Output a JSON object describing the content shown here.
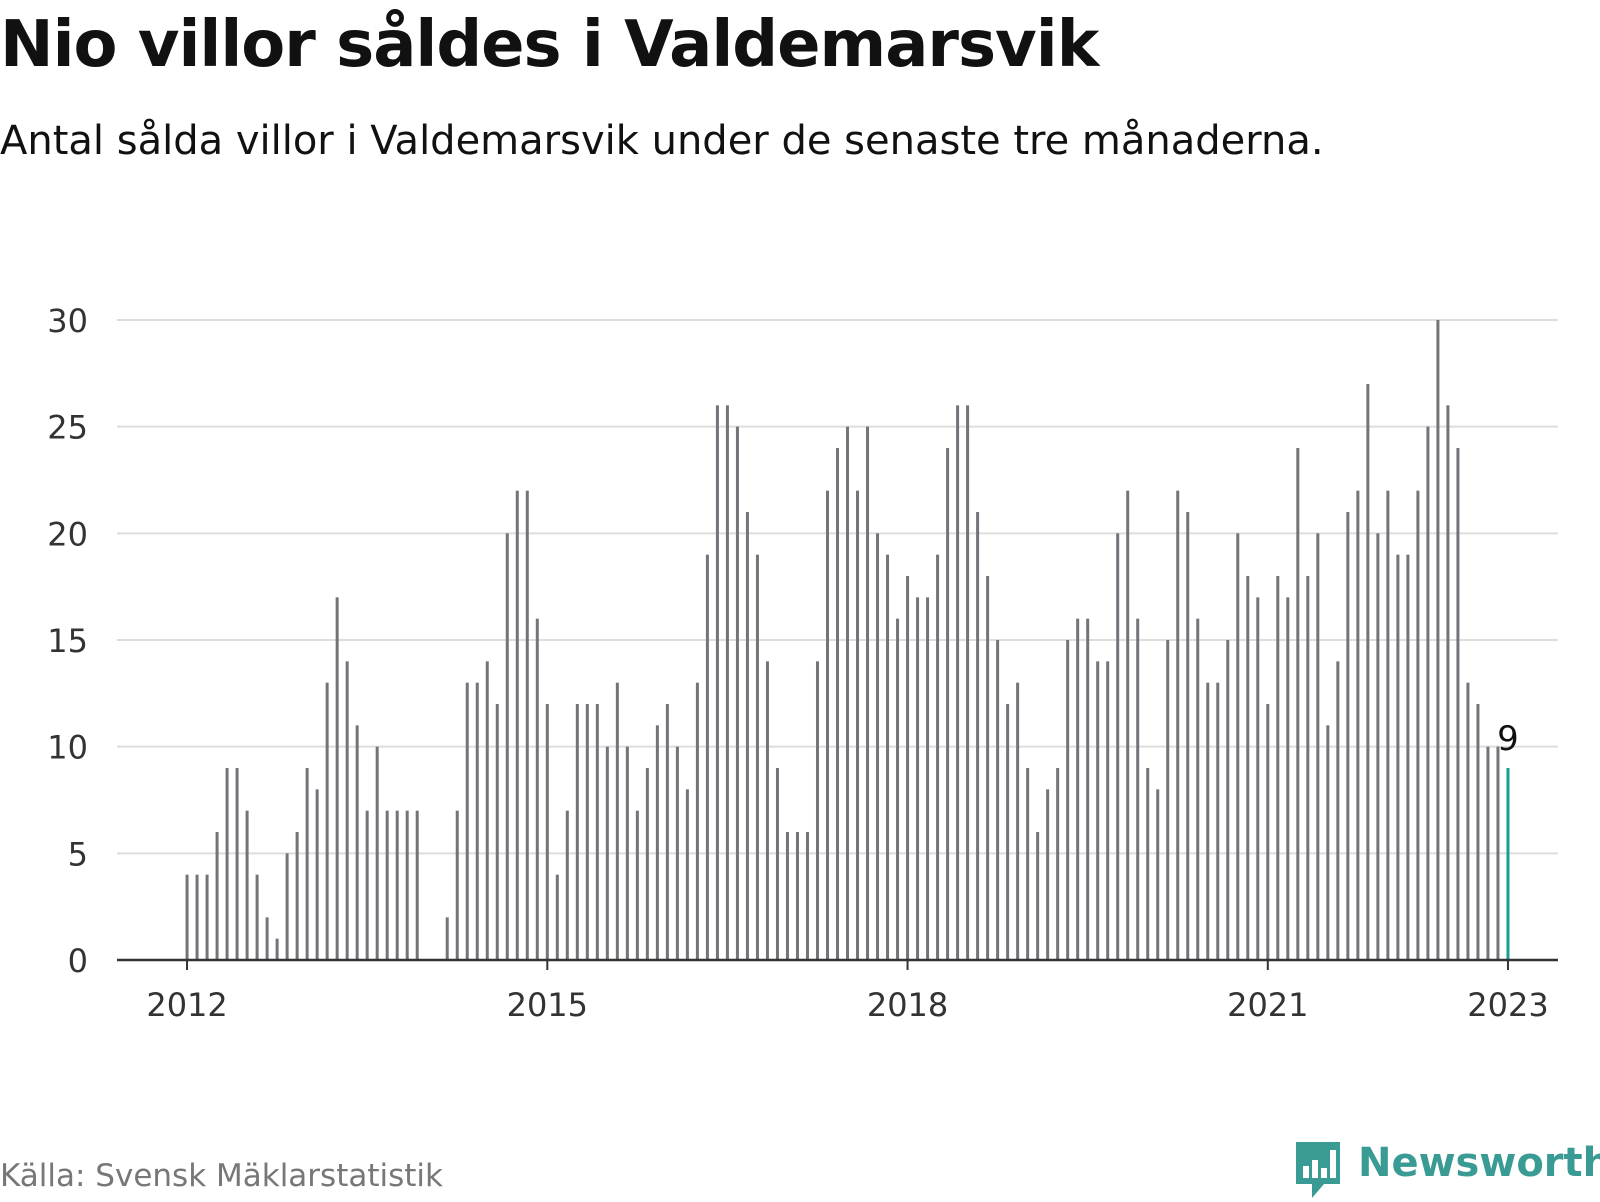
{
  "title": "Nio villor såldes i Valdemarsvik",
  "subtitle": "Antal sålda villor i Valdemarsvik under de senaste tre månaderna.",
  "source": "Källa: Svensk Mäklarstatistik",
  "brand": {
    "name": "Newsworthy",
    "icon": "newsworthy-logo-icon",
    "color": "#3a9b94"
  },
  "colors": {
    "bar": "#74737a",
    "highlight": "#1a9e92",
    "grid": "#dddddd",
    "axis": "#333333",
    "text": "#333333"
  },
  "chart_data": {
    "type": "bar",
    "title": "Nio villor såldes i Valdemarsvik",
    "subtitle": "Antal sålda villor i Valdemarsvik under de senaste tre månaderna.",
    "xlabel": "",
    "ylabel": "",
    "ylim": [
      0,
      30
    ],
    "yticks": [
      0,
      5,
      10,
      15,
      20,
      25,
      30
    ],
    "xticks": [
      "2012",
      "2015",
      "2018",
      "2021",
      "2023"
    ],
    "grid": true,
    "legend": "none",
    "x_start": "2011-06",
    "x_end": "2023-06",
    "months": [
      "2012-01",
      "2012-02",
      "2012-03",
      "2012-04",
      "2012-05",
      "2012-06",
      "2012-07",
      "2012-08",
      "2012-09",
      "2012-10",
      "2012-11",
      "2012-12",
      "2013-01",
      "2013-02",
      "2013-03",
      "2013-04",
      "2013-05",
      "2013-06",
      "2013-07",
      "2013-08",
      "2013-09",
      "2013-10",
      "2013-11",
      "2013-12",
      "2014-01",
      "2014-02",
      "2014-03",
      "2014-04",
      "2014-05",
      "2014-06",
      "2014-07",
      "2014-08",
      "2014-09",
      "2014-10",
      "2014-11",
      "2014-12",
      "2015-01",
      "2015-02",
      "2015-03",
      "2015-04",
      "2015-05",
      "2015-06",
      "2015-07",
      "2015-08",
      "2015-09",
      "2015-10",
      "2015-11",
      "2015-12",
      "2016-01",
      "2016-02",
      "2016-03",
      "2016-04",
      "2016-05",
      "2016-06",
      "2016-07",
      "2016-08",
      "2016-09",
      "2016-10",
      "2016-11",
      "2016-12",
      "2017-01",
      "2017-02",
      "2017-03",
      "2017-04",
      "2017-05",
      "2017-06",
      "2017-07",
      "2017-08",
      "2017-09",
      "2017-10",
      "2017-11",
      "2017-12",
      "2018-01",
      "2018-02",
      "2018-03",
      "2018-04",
      "2018-05",
      "2018-06",
      "2018-07",
      "2018-08",
      "2018-09",
      "2018-10",
      "2018-11",
      "2018-12",
      "2019-01",
      "2019-02",
      "2019-03",
      "2019-04",
      "2019-05",
      "2019-06",
      "2019-07",
      "2019-08",
      "2019-09",
      "2019-10",
      "2019-11",
      "2019-12",
      "2020-01",
      "2020-02",
      "2020-03",
      "2020-04",
      "2020-05",
      "2020-06",
      "2020-07",
      "2020-08",
      "2020-09",
      "2020-10",
      "2020-11",
      "2020-12",
      "2021-01",
      "2021-02",
      "2021-03",
      "2021-04",
      "2021-05",
      "2021-06",
      "2021-07",
      "2021-08",
      "2021-09",
      "2021-10",
      "2021-11",
      "2021-12",
      "2022-01",
      "2022-02",
      "2022-03",
      "2022-04",
      "2022-05",
      "2022-06",
      "2022-07",
      "2022-08",
      "2022-09",
      "2022-10",
      "2022-11",
      "2022-12",
      "2023-01"
    ],
    "values": [
      4,
      4,
      4,
      6,
      9,
      9,
      7,
      4,
      2,
      1,
      5,
      6,
      9,
      8,
      13,
      17,
      14,
      11,
      7,
      10,
      7,
      7,
      7,
      7,
      null,
      null,
      2,
      7,
      13,
      13,
      14,
      12,
      20,
      22,
      22,
      16,
      12,
      4,
      7,
      12,
      12,
      12,
      10,
      13,
      10,
      7,
      9,
      11,
      12,
      10,
      8,
      13,
      19,
      26,
      26,
      25,
      21,
      19,
      14,
      9,
      6,
      6,
      6,
      14,
      22,
      24,
      25,
      22,
      25,
      20,
      19,
      16,
      18,
      17,
      17,
      19,
      24,
      26,
      26,
      21,
      18,
      15,
      12,
      13,
      9,
      6,
      8,
      9,
      15,
      16,
      16,
      14,
      14,
      20,
      22,
      16,
      9,
      8,
      15,
      22,
      21,
      16,
      13,
      13,
      15,
      20,
      18,
      17,
      12,
      18,
      17,
      24,
      18,
      20,
      11,
      14,
      21,
      22,
      27,
      20,
      22,
      19,
      19,
      22,
      25,
      30,
      26,
      24,
      13,
      12,
      10,
      10,
      9
    ],
    "highlight": {
      "month": "2023-01",
      "value": 9,
      "label": "9"
    }
  }
}
